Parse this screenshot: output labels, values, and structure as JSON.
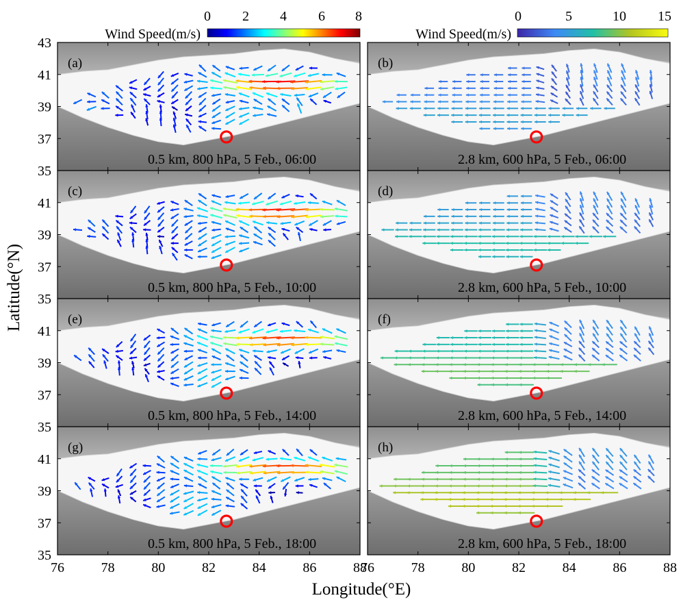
{
  "chart_data": {
    "type": "quiver",
    "xlabel": "Longitude(°E)",
    "ylabel": "Latitude(°N)",
    "xlim": [
      76,
      88
    ],
    "ylim": [
      35,
      43
    ],
    "x_ticks": [
      76,
      78,
      80,
      82,
      84,
      86,
      88
    ],
    "y_ticks": [
      35,
      37,
      39,
      41,
      43
    ],
    "x_tick_labels": [
      "76",
      "78",
      "80",
      "82",
      "84",
      "86",
      "88"
    ],
    "y_tick_labels": [
      "35",
      "37",
      "39",
      "41",
      "43"
    ],
    "site_marker": {
      "lon": 82.7,
      "lat": 37.1,
      "color": "#ff0000"
    },
    "colorbars": [
      {
        "label": "Wind Speed(m/s)",
        "range": [
          0,
          8
        ],
        "ticks": [
          "0",
          "2",
          "4",
          "6",
          "8"
        ],
        "tick_values": [
          0,
          2,
          4,
          6,
          8
        ],
        "colormap": "jet"
      },
      {
        "label": "Wind Speed(m/s)",
        "range": [
          0,
          15
        ],
        "ticks": [
          "0",
          "5",
          "10",
          "15"
        ],
        "tick_values": [
          0,
          5,
          10,
          15
        ],
        "colormap": "parula"
      }
    ],
    "panels": [
      {
        "letter": "(a)",
        "label": "0.5 km, 800 hPa, 5 Feb., 06:00",
        "level": "low",
        "hour": 6,
        "colorbar": 0
      },
      {
        "letter": "(b)",
        "label": "2.8 km, 600 hPa, 5 Feb., 06:00",
        "level": "high",
        "hour": 6,
        "colorbar": 1
      },
      {
        "letter": "(c)",
        "label": "0.5 km, 800 hPa, 5 Feb., 10:00",
        "level": "low",
        "hour": 10,
        "colorbar": 0
      },
      {
        "letter": "(d)",
        "label": "2.8 km, 600 hPa, 5 Feb., 10:00",
        "level": "high",
        "hour": 10,
        "colorbar": 1
      },
      {
        "letter": "(e)",
        "label": "0.5 km, 800 hPa, 5 Feb., 14:00",
        "level": "low",
        "hour": 14,
        "colorbar": 0
      },
      {
        "letter": "(f)",
        "label": "2.8 km, 600 hPa, 5 Feb., 14:00",
        "level": "high",
        "hour": 14,
        "colorbar": 1
      },
      {
        "letter": "(g)",
        "label": "0.5 km, 800 hPa, 5 Feb., 18:00",
        "level": "low",
        "hour": 18,
        "colorbar": 0
      },
      {
        "letter": "(h)",
        "label": "2.8 km, 600 hPa, 5 Feb., 18:00",
        "level": "high",
        "hour": 18,
        "colorbar": 1
      }
    ]
  }
}
